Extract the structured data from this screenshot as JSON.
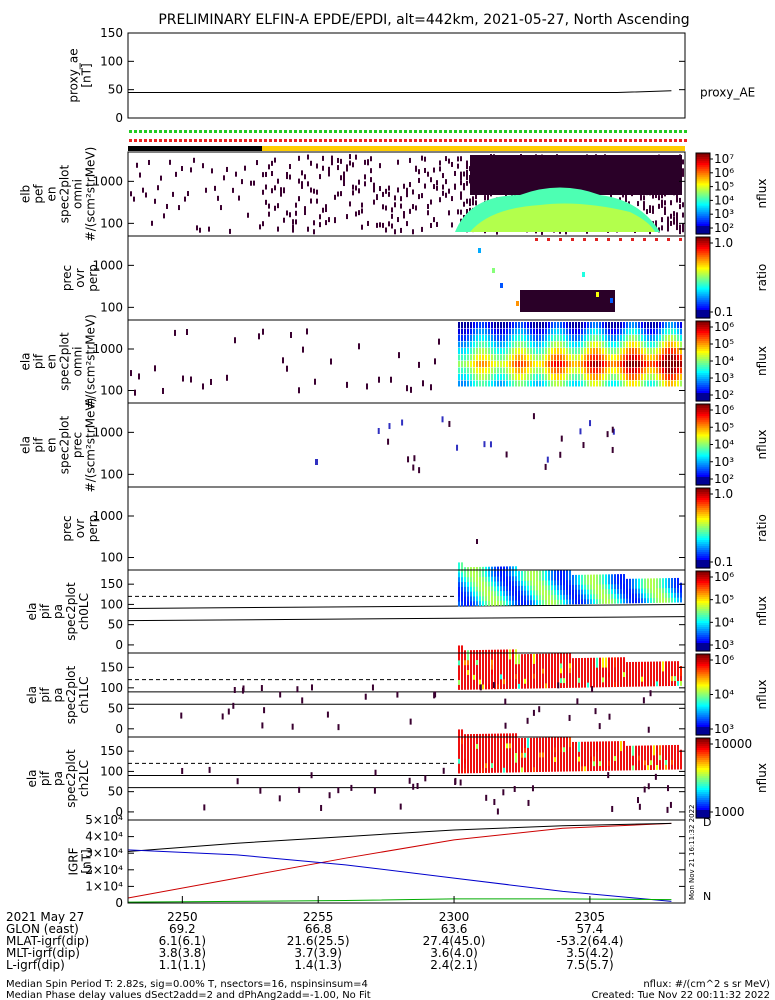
{
  "title": "PRELIMINARY ELFIN-A EPDE/EPDI, alt=442km, 2021-05-27, North Ascending",
  "colors": {
    "background": "#ffffff",
    "axis": "#000000",
    "trace_red": "#cc0000",
    "trace_blue": "#0000cc",
    "trace_green": "#00aa00",
    "bar_green": "#22cc22",
    "bar_red": "#ee2222",
    "bar_yellow": "#ffcc00",
    "bar_black": "#000000"
  },
  "panels": [
    {
      "id": "proxy_ae",
      "ylabel": [
        "proxy_ae",
        "[nT]"
      ],
      "yticks": [
        "150",
        "100",
        "50",
        "0"
      ],
      "legend": "proxy_AE"
    },
    {
      "id": "elb_pef_en_omni",
      "ylabel": [
        "elb",
        "pef",
        "en",
        "spec2plot",
        "omni",
        "#/(scm²strMeV)"
      ],
      "yticks": [
        "1000",
        "100"
      ]
    },
    {
      "id": "elb_prec_ovr_perp",
      "ylabel": [
        "prec",
        "ovr",
        "perp"
      ],
      "yticks": [
        "1000",
        "100"
      ]
    },
    {
      "id": "ela_pif_en_omni",
      "ylabel": [
        "ela",
        "pif",
        "en",
        "spec2plot",
        "omni",
        "#/(scm²strMeV)"
      ],
      "yticks": [
        "1000",
        "100"
      ]
    },
    {
      "id": "ela_pif_en_prec",
      "ylabel": [
        "ela",
        "pif",
        "en",
        "spec2plot",
        "prec",
        "#/(scm²strMeV)"
      ],
      "yticks": [
        "1000",
        "100"
      ]
    },
    {
      "id": "ela_prec_ovr_perp",
      "ylabel": [
        "prec",
        "ovr",
        "perp"
      ],
      "yticks": [
        "1000",
        "100"
      ]
    },
    {
      "id": "ela_pif_pa_ch0LC",
      "ylabel": [
        "ela",
        "pif",
        "pa",
        "spec2plot",
        "ch0LC"
      ],
      "yticks": [
        "150",
        "100",
        "50",
        "0"
      ]
    },
    {
      "id": "ela_pif_pa_ch1LC",
      "ylabel": [
        "ela",
        "pif",
        "pa",
        "spec2plot",
        "ch1LC"
      ],
      "yticks": [
        "150",
        "100",
        "50",
        "0"
      ]
    },
    {
      "id": "ela_pif_pa_ch2LC",
      "ylabel": [
        "ela",
        "pif",
        "pa",
        "spec2plot",
        "ch2LC"
      ],
      "yticks": [
        "150",
        "100",
        "50",
        "0"
      ]
    },
    {
      "id": "igrf",
      "ylabel": [
        "IGRF",
        "[nT]"
      ],
      "yticks": [
        "5×10⁴",
        "4×10⁴",
        "3×10⁴",
        "2×10⁴",
        "1×10⁴",
        "0"
      ],
      "legend_labels": [
        "D",
        "N"
      ]
    }
  ],
  "colorbars": [
    {
      "label": "nflux",
      "ticks": [
        "10⁷",
        "10⁶",
        "10⁵",
        "10⁴",
        "10³",
        "10²"
      ]
    },
    {
      "label": "ratio",
      "ticks": [
        "1.0",
        "0.1"
      ]
    },
    {
      "label": "nflux",
      "ticks": [
        "10⁶",
        "10⁵",
        "10⁴",
        "10³",
        "10²"
      ]
    },
    {
      "label": "nflux",
      "ticks": [
        "10⁶",
        "10⁵",
        "10⁴",
        "10³",
        "10²"
      ]
    },
    {
      "label": "ratio",
      "ticks": [
        "1.0",
        "0.1"
      ]
    },
    {
      "label": "nflux",
      "ticks": [
        "10⁶",
        "10⁵",
        "10⁴",
        "10³"
      ]
    },
    {
      "label": "nflux",
      "ticks": [
        "10⁶",
        "10⁴",
        "10³"
      ]
    },
    {
      "label": "nflux",
      "ticks": [
        "10000",
        "1000"
      ]
    }
  ],
  "created_vertical": "Mon Nov 21 16:11:32 2022",
  "xaxis": {
    "row_labels": [
      "2021 May 27",
      "GLON (east)",
      "MLAT-igrf(dip)",
      "MLT-igrf(dip)",
      "L-igrf(dip)"
    ],
    "columns": [
      {
        "time": "2250",
        "glon": "69.2",
        "mlat": "6.1(6.1)",
        "mlt": "3.8(3.8)",
        "l": "1.1(1.1)"
      },
      {
        "time": "2255",
        "glon": "66.8",
        "mlat": "21.6(25.5)",
        "mlt": "3.7(3.9)",
        "l": "1.4(1.3)"
      },
      {
        "time": "2300",
        "glon": "63.6",
        "mlat": "27.4(45.0)",
        "mlt": "3.6(4.0)",
        "l": "2.4(2.1)"
      },
      {
        "time": "2305",
        "glon": "57.4",
        "mlat": "-53.2(64.4)",
        "mlt": "3.5(4.2)",
        "l": "7.5(5.7)"
      }
    ]
  },
  "footer": {
    "line1": "Median Spin Period T: 2.82s, sig=0.00% T, nsectors=16, nspinsinsum=4",
    "line2": "Median Phase delay values dSect2add=2 and dPhAng2add=-1.00, No Fit",
    "right1": "nflux: #/(cm^2 s sr MeV)",
    "right2": "Created: Tue Nov 22 00:11:32 2022"
  },
  "chart_data": {
    "type": "spectrogram",
    "x_time_ticks": [
      "2250",
      "2255",
      "2300",
      "2305"
    ],
    "proxy_ae": {
      "name": "proxy_AE",
      "ylim": [
        0,
        150
      ],
      "x": [
        "2248",
        "2300",
        "2306",
        "2308"
      ],
      "y": [
        45,
        45,
        45,
        48
      ]
    },
    "igrf": {
      "ylim": [
        0,
        50000
      ],
      "series": [
        {
          "name": "D",
          "color": "red",
          "x": [
            "2248",
            "2252",
            "2256",
            "2300",
            "2304",
            "2308"
          ],
          "y": [
            3000,
            15000,
            27000,
            38000,
            45000,
            48000
          ]
        },
        {
          "name": "",
          "color": "black",
          "x": [
            "2248",
            "2252",
            "2256",
            "2300",
            "2304",
            "2308"
          ],
          "y": [
            31000,
            36000,
            40000,
            44000,
            46500,
            48000
          ]
        },
        {
          "name": "",
          "color": "blue",
          "x": [
            "2248",
            "2252",
            "2256",
            "2300",
            "2304",
            "2308"
          ],
          "y": [
            32000,
            29000,
            23000,
            15000,
            7000,
            1000
          ]
        },
        {
          "name": "N",
          "color": "green",
          "x": [
            "2248",
            "2256",
            "2300",
            "2304",
            "2308"
          ],
          "y": [
            500,
            1500,
            2500,
            2500,
            2000
          ]
        }
      ]
    },
    "pa_dashed_level": 120,
    "pa_solid_levels": [
      90,
      60
    ]
  }
}
